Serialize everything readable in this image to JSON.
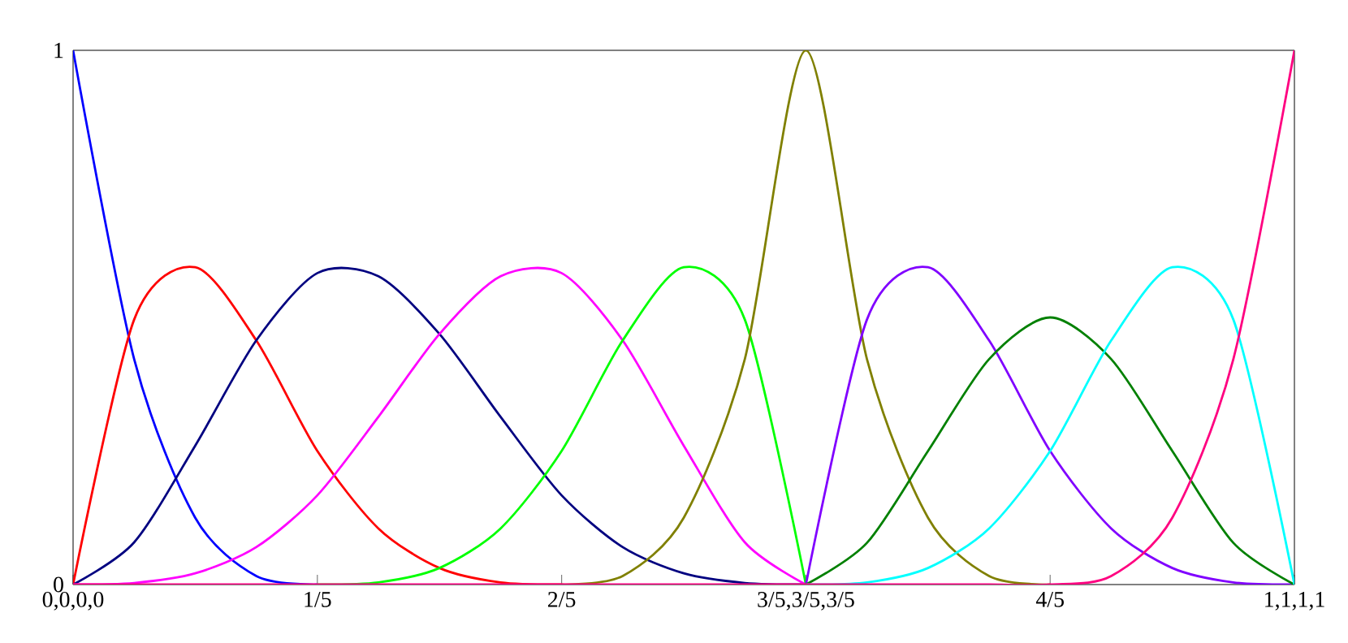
{
  "chart_data": {
    "type": "line",
    "x": [
      0,
      0.05,
      0.1,
      0.15,
      0.2,
      0.25,
      0.3,
      0.35,
      0.4,
      0.45,
      0.5,
      0.55,
      0.6,
      0.65,
      0.7,
      0.75,
      0.8,
      0.85,
      0.9,
      0.95,
      1
    ],
    "series": [
      {
        "color": "#0000ff",
        "values": [
          1,
          0.422,
          0.125,
          0.016,
          0,
          null,
          null,
          null,
          null,
          null,
          null,
          null,
          null,
          null,
          null,
          null,
          null,
          null,
          null,
          null,
          null
        ]
      },
      {
        "color": "#ff0000",
        "values": [
          0,
          0.496,
          0.594,
          0.457,
          0.25,
          0.105,
          0.031,
          0.004,
          0,
          null,
          null,
          null,
          null,
          null,
          null,
          null,
          null,
          null,
          null,
          null,
          null
        ]
      },
      {
        "color": "#000080",
        "values": [
          0,
          0.079,
          0.26,
          0.457,
          0.583,
          0.577,
          0.469,
          0.314,
          0.167,
          0.07,
          0.021,
          0.003,
          0,
          null,
          null,
          null,
          null,
          null,
          null,
          null,
          null
        ]
      },
      {
        "color": "#ff00ff",
        "values": [
          0,
          0.003,
          0.021,
          0.07,
          0.167,
          0.314,
          0.469,
          0.577,
          0.583,
          0.457,
          0.26,
          0.079,
          0,
          null,
          null,
          null,
          null,
          null,
          null,
          null,
          null
        ]
      },
      {
        "color": "#00ff00",
        "values": [
          null,
          null,
          null,
          null,
          0,
          0.004,
          0.031,
          0.105,
          0.25,
          0.457,
          0.594,
          0.496,
          0,
          null,
          null,
          null,
          null,
          null,
          null,
          null,
          null
        ]
      },
      {
        "color": "#808000",
        "values": [
          null,
          null,
          null,
          null,
          null,
          null,
          null,
          null,
          0,
          0.016,
          0.125,
          0.422,
          1,
          0.422,
          0.125,
          0.016,
          0,
          null,
          null,
          null,
          null
        ]
      },
      {
        "color": "#8000ff",
        "values": [
          null,
          null,
          null,
          null,
          null,
          null,
          null,
          null,
          null,
          null,
          null,
          null,
          0,
          0.496,
          0.594,
          0.457,
          0.25,
          0.105,
          0.031,
          0.004,
          0
        ]
      },
      {
        "color": "#008000",
        "values": [
          null,
          null,
          null,
          null,
          null,
          null,
          null,
          null,
          null,
          null,
          null,
          null,
          0,
          0.078,
          0.25,
          0.422,
          0.5,
          0.422,
          0.25,
          0.078,
          0
        ]
      },
      {
        "color": "#00ffff",
        "values": [
          null,
          null,
          null,
          null,
          null,
          null,
          null,
          null,
          null,
          null,
          null,
          null,
          0,
          0.004,
          0.031,
          0.105,
          0.25,
          0.457,
          0.594,
          0.496,
          0
        ]
      },
      {
        "color": "#ff0080",
        "values": [
          0,
          0,
          0,
          0,
          0,
          0,
          0,
          0,
          0,
          0,
          0,
          0,
          0,
          0,
          0,
          0,
          0,
          0.016,
          0.125,
          0.422,
          1
        ]
      }
    ],
    "xlim": [
      0,
      1
    ],
    "ylim": [
      0,
      1
    ],
    "xticks": [
      {
        "value": 0,
        "label": "0,0,0,0"
      },
      {
        "value": 0.2,
        "label": "1/5"
      },
      {
        "value": 0.4,
        "label": "2/5"
      },
      {
        "value": 0.6,
        "label": "3/5,3/5,3/5"
      },
      {
        "value": 0.8,
        "label": "4/5"
      },
      {
        "value": 1,
        "label": "1,1,1,1"
      }
    ],
    "yticks": [
      0,
      1
    ],
    "grid": false,
    "legend": false,
    "marker": "none",
    "line_style": "solid"
  }
}
